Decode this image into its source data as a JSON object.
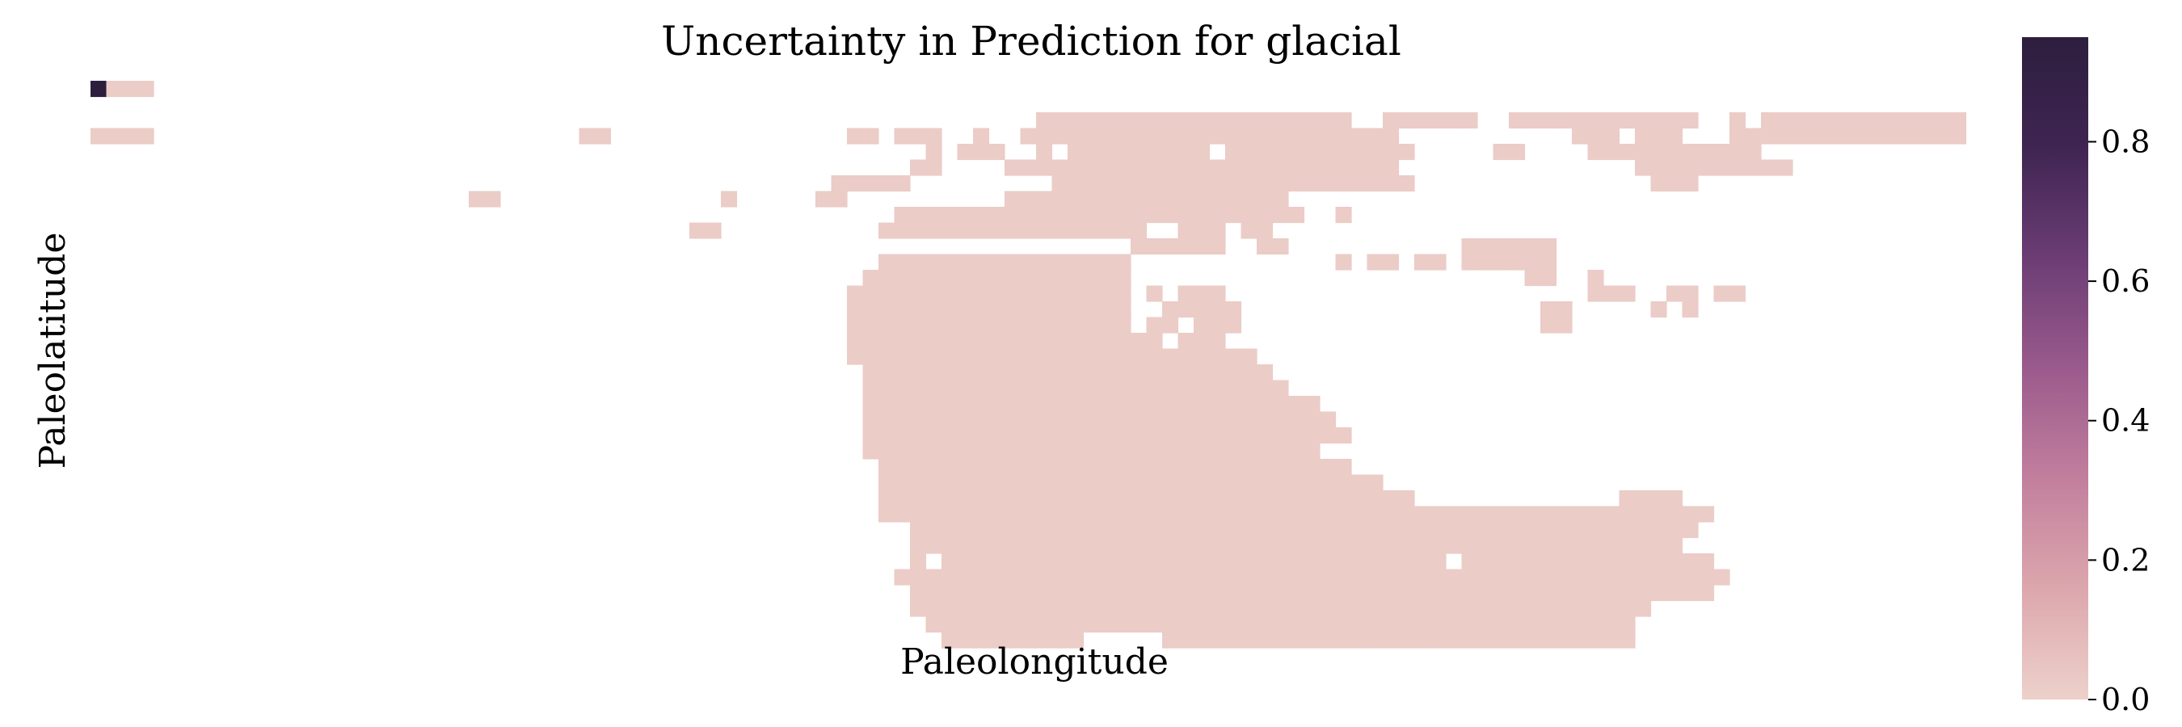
{
  "chart_data": {
    "type": "heatmap",
    "title": "Uncertainty in Prediction for glacial",
    "xlabel": "Paleolongitude",
    "ylabel": "Paleolatitude",
    "grid": false,
    "legend": "colorbar-right",
    "colorbar": {
      "range": [
        0.0,
        0.95
      ],
      "ticks": [
        0.0,
        0.2,
        0.4,
        0.6,
        0.8
      ],
      "tick_labels": [
        "0.0",
        "0.2",
        "0.4",
        "0.6",
        "0.8"
      ],
      "colors": [
        "#edd1cb",
        "#dca7ad",
        "#c27f9d",
        "#9a5a8c",
        "#6b3d74",
        "#3f2552",
        "#2d1e3e"
      ]
    },
    "grid_size": {
      "cols": 120,
      "rows": 36
    },
    "masked_value": null,
    "base_value": 0.02,
    "cells": [
      {
        "col": 0,
        "row": 0,
        "value": 0.95
      },
      {
        "col": 1,
        "row": 0,
        "value": 0.02
      }
    ],
    "land_rows": [
      [
        0,
        0,
        1
      ],
      [
        1,
        0,
        3
      ],
      [
        16,
        0,
        0
      ],
      [
        34,
        0,
        3
      ],
      [
        42,
        0,
        1
      ],
      [
        48,
        0,
        1
      ],
      [
        54,
        0,
        5
      ],
      [
        60,
        0,
        9
      ],
      [
        43,
        1,
        3
      ],
      [
        27,
        2,
        5
      ],
      [
        50,
        2,
        49
      ],
      [
        60,
        2,
        79
      ],
      [
        61,
        2,
        47
      ],
      [
        75,
        2,
        79
      ],
      [
        82,
        2,
        87
      ],
      [
        90,
        2,
        94
      ],
      [
        95,
        2,
        100
      ],
      [
        101,
        2,
        101
      ],
      [
        104,
        2,
        104
      ],
      [
        106,
        2,
        118
      ],
      [
        0,
        3,
        3
      ],
      [
        31,
        3,
        32
      ],
      [
        48,
        3,
        49
      ],
      [
        51,
        3,
        54
      ],
      [
        56,
        3,
        57
      ],
      [
        59,
        3,
        63
      ],
      [
        64,
        3,
        76
      ],
      [
        77,
        3,
        82
      ],
      [
        94,
        3,
        96
      ],
      [
        98,
        3,
        100
      ],
      [
        104,
        3,
        118
      ],
      [
        53,
        4,
        53
      ],
      [
        55,
        4,
        57
      ],
      [
        60,
        4,
        79
      ],
      [
        80,
        4,
        83
      ],
      [
        89,
        4,
        90
      ],
      [
        95,
        4,
        99
      ],
      [
        100,
        4,
        105
      ],
      [
        52,
        5,
        53
      ],
      [
        58,
        5,
        71
      ],
      [
        72,
        5,
        78
      ],
      [
        79,
        5,
        80
      ],
      [
        81,
        5,
        82
      ],
      [
        98,
        5,
        107
      ],
      [
        47,
        6,
        51
      ],
      [
        61,
        6,
        83
      ],
      [
        99,
        6,
        101
      ],
      [
        24,
        7,
        25
      ],
      [
        40,
        7,
        40
      ],
      [
        46,
        7,
        47
      ],
      [
        58,
        7,
        74
      ],
      [
        72,
        7,
        75
      ],
      [
        51,
        8,
        70
      ],
      [
        71,
        8,
        76
      ],
      [
        79,
        8,
        79
      ],
      [
        38,
        9,
        39
      ],
      [
        50,
        9,
        66
      ],
      [
        69,
        9,
        71
      ],
      [
        73,
        9,
        74
      ],
      [
        66,
        10,
        71
      ],
      [
        74,
        10,
        75
      ],
      [
        87,
        10,
        92
      ],
      [
        49,
        11,
        50
      ],
      [
        51,
        11,
        66
      ],
      [
        87,
        11,
        88
      ],
      [
        89,
        11,
        92
      ],
      [
        79,
        11,
        79
      ],
      [
        81,
        11,
        82
      ],
      [
        84,
        11,
        85
      ],
      [
        49,
        12,
        52
      ],
      [
        53,
        12,
        65
      ],
      [
        91,
        12,
        92
      ],
      [
        95,
        12,
        95
      ],
      [
        48,
        13,
        67
      ],
      [
        69,
        13,
        71
      ],
      [
        95,
        13,
        97
      ],
      [
        100,
        13,
        101
      ],
      [
        103,
        13,
        104
      ],
      [
        48,
        14,
        68
      ],
      [
        69,
        14,
        72
      ],
      [
        92,
        14,
        93
      ],
      [
        99,
        14,
        99
      ],
      [
        101,
        14,
        101
      ],
      [
        48,
        15,
        65
      ],
      [
        67,
        15,
        68
      ],
      [
        70,
        15,
        72
      ],
      [
        92,
        15,
        93
      ],
      [
        48,
        16,
        66
      ],
      [
        67,
        16,
        67
      ],
      [
        69,
        16,
        71
      ],
      [
        48,
        17,
        69
      ],
      [
        70,
        17,
        73
      ],
      [
        49,
        18,
        69
      ],
      [
        70,
        18,
        74
      ],
      [
        49,
        19,
        72
      ],
      [
        73,
        19,
        75
      ],
      [
        49,
        20,
        73
      ],
      [
        74,
        20,
        77
      ],
      [
        49,
        21,
        74
      ],
      [
        75,
        21,
        78
      ],
      [
        49,
        22,
        75
      ],
      [
        76,
        22,
        79
      ],
      [
        49,
        23,
        77
      ],
      [
        50,
        24,
        74
      ],
      [
        75,
        24,
        79
      ],
      [
        50,
        25,
        76
      ],
      [
        77,
        25,
        81
      ],
      [
        50,
        26,
        78
      ],
      [
        79,
        26,
        83
      ],
      [
        97,
        26,
        100
      ],
      [
        50,
        27,
        80
      ],
      [
        81,
        27,
        99
      ],
      [
        100,
        27,
        102
      ],
      [
        52,
        28,
        82
      ],
      [
        83,
        28,
        100
      ],
      [
        101,
        28,
        101
      ],
      [
        52,
        29,
        85
      ],
      [
        86,
        29,
        88
      ],
      [
        89,
        29,
        100
      ],
      [
        52,
        30,
        100
      ],
      [
        101,
        30,
        102
      ],
      [
        51,
        31,
        100
      ],
      [
        101,
        31,
        103
      ],
      [
        52,
        32,
        101
      ],
      [
        102,
        32,
        102
      ],
      [
        52,
        33,
        98
      ],
      [
        53,
        34,
        65
      ],
      [
        66,
        34,
        97
      ],
      [
        54,
        35,
        62
      ],
      [
        68,
        35,
        97
      ]
    ],
    "holes": [
      [
        54,
        3,
        54
      ],
      [
        57,
        3,
        57
      ],
      [
        61,
        4,
        61
      ],
      [
        71,
        4,
        71
      ],
      [
        49,
        11,
        49
      ],
      [
        66,
        11,
        66
      ],
      [
        67,
        12,
        67
      ],
      [
        68,
        12,
        68
      ],
      [
        66,
        13,
        66
      ],
      [
        68,
        13,
        68
      ],
      [
        66,
        14,
        66
      ],
      [
        67,
        14,
        67
      ],
      [
        53,
        30,
        53
      ],
      [
        86,
        30,
        86
      ]
    ]
  }
}
